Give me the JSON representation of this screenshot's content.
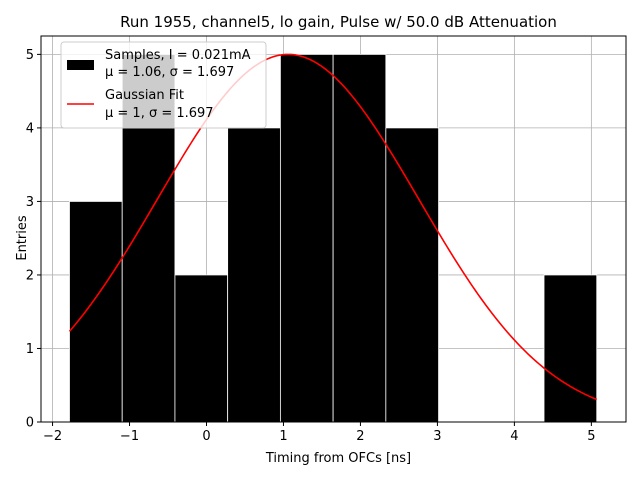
{
  "chart_data": {
    "type": "bar",
    "title": "Run 1955, channel5, lo gain, Pulse w/ 50.0 dB Attenuation",
    "xlabel": "Timing from OFCs [ns]",
    "ylabel": "Entries",
    "xlim": [
      -2.15,
      5.45
    ],
    "ylim": [
      0,
      5.25
    ],
    "xticks": [
      -2,
      -1,
      0,
      1,
      2,
      3,
      4,
      5
    ],
    "yticks": [
      0,
      1,
      2,
      3,
      4,
      5
    ],
    "grid": true,
    "legend_position": "top-left",
    "histogram": {
      "name": "Samples, I = 0.021mA",
      "stats": "μ = 1.06, σ = 1.697",
      "color": "#000000",
      "bin_edges": [
        -1.78,
        -1.095,
        -0.41,
        0.275,
        0.96,
        1.645,
        2.33,
        3.015,
        3.7,
        4.385,
        5.07
      ],
      "counts": [
        3,
        5,
        2,
        4,
        5,
        5,
        4,
        0,
        0,
        2
      ]
    },
    "fit": {
      "name": "Gaussian Fit",
      "stats": "μ = 1, σ = 1.697",
      "color": "#ff0000",
      "amplitude": 5.0,
      "mean": 1.06,
      "sigma": 1.697,
      "x_range": [
        -1.78,
        5.07
      ]
    }
  }
}
